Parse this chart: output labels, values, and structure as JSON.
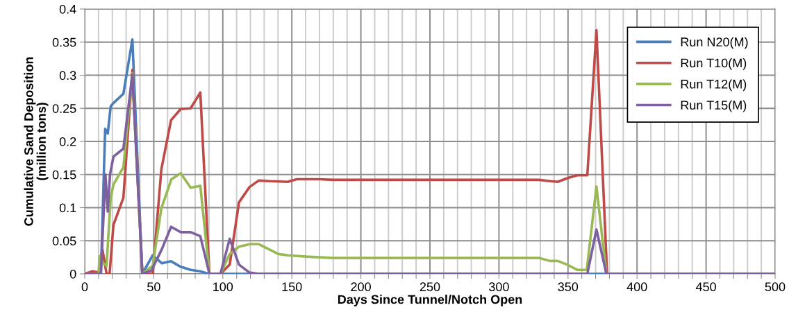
{
  "chart_data": {
    "type": "line",
    "xlabel": "Days Since Tunnel/Notch Open",
    "ylabel": "Cumulative Sand Deposition\n(million tons)",
    "xlim": [
      0,
      500
    ],
    "ylim": [
      0,
      0.4
    ],
    "xticks": [
      0,
      {
        "value": 10,
        "label": null
      },
      {
        "value": 20,
        "label": null
      },
      {
        "value": 30,
        "label": null
      },
      {
        "value": 40,
        "label": null
      },
      50,
      {
        "value": 60,
        "label": null
      },
      {
        "value": 70,
        "label": null
      },
      {
        "value": 80,
        "label": null
      },
      {
        "value": 90,
        "label": null
      },
      100,
      {
        "value": 110,
        "label": null
      },
      {
        "value": 120,
        "label": null
      },
      {
        "value": 130,
        "label": null
      },
      {
        "value": 140,
        "label": null
      },
      150,
      {
        "value": 160,
        "label": null
      },
      {
        "value": 170,
        "label": null
      },
      {
        "value": 180,
        "label": null
      },
      {
        "value": 190,
        "label": null
      },
      200,
      {
        "value": 210,
        "label": null
      },
      {
        "value": 220,
        "label": null
      },
      {
        "value": 230,
        "label": null
      },
      {
        "value": 240,
        "label": null
      },
      250,
      {
        "value": 260,
        "label": null
      },
      {
        "value": 270,
        "label": null
      },
      {
        "value": 280,
        "label": null
      },
      {
        "value": 290,
        "label": null
      },
      300,
      {
        "value": 310,
        "label": null
      },
      {
        "value": 320,
        "label": null
      },
      {
        "value": 330,
        "label": null
      },
      {
        "value": 340,
        "label": null
      },
      350,
      {
        "value": 360,
        "label": null
      },
      {
        "value": 370,
        "label": null
      },
      {
        "value": 380,
        "label": null
      },
      {
        "value": 390,
        "label": null
      },
      400,
      {
        "value": 410,
        "label": null
      },
      {
        "value": 420,
        "label": null
      },
      {
        "value": 430,
        "label": null
      },
      {
        "value": 440,
        "label": null
      },
      450,
      {
        "value": 460,
        "label": null
      },
      {
        "value": 470,
        "label": null
      },
      {
        "value": 480,
        "label": null
      },
      {
        "value": 490,
        "label": null
      },
      500
    ],
    "yticks": [
      0,
      0.05,
      0.1,
      0.15,
      0.2,
      0.25,
      0.3,
      0.35,
      0.4
    ],
    "grid": true,
    "legend": "top right",
    "marker": "none",
    "line_style": "solid",
    "series": [
      {
        "name": "Run N20(M)",
        "color": "#4a7ebb",
        "x": [
          0,
          11.7,
          14.8,
          16.7,
          18.8,
          20.8,
          28,
          34.5,
          41.7,
          49.2,
          55.8,
          62.5,
          69.2,
          76.7,
          83.3,
          90,
          500
        ],
        "values": [
          0,
          0,
          0.219,
          0.212,
          0.253,
          0.258,
          0.272,
          0.354,
          0,
          0.028,
          0.016,
          0.019,
          0.011,
          0.006,
          0.004,
          0,
          0
        ]
      },
      {
        "name": "Run T10(M)",
        "color": "#be4b48",
        "x": [
          0,
          5.8,
          10,
          12.8,
          15.8,
          18,
          20.8,
          28,
          34.5,
          41.7,
          49.2,
          55.5,
          62.5,
          69.5,
          76.7,
          83.7,
          90.3,
          98.3,
          105,
          111.7,
          119.3,
          126,
          133.5,
          147,
          153.6,
          170,
          180,
          197,
          329,
          336.8,
          342.6,
          350.2,
          356.9,
          364,
          370.6,
          378.3,
          500
        ],
        "values": [
          0,
          0.004,
          0.002,
          0.037,
          0,
          0,
          0.074,
          0.115,
          0.308,
          0,
          0,
          0.158,
          0.232,
          0.249,
          0.25,
          0.274,
          0,
          0,
          0.014,
          0.108,
          0.131,
          0.141,
          0.14,
          0.139,
          0.143,
          0.143,
          0.142,
          0.142,
          0.142,
          0.14,
          0.139,
          0.145,
          0.149,
          0.149,
          0.368,
          0,
          0
        ]
      },
      {
        "name": "Run T12(M)",
        "color": "#98b954",
        "x": [
          0,
          10,
          10.8,
          13.3,
          15.8,
          18.8,
          20.8,
          28,
          34.5,
          41.7,
          49.2,
          55.5,
          62.8,
          69.5,
          76.7,
          83.7,
          90.3,
          98.3,
          105,
          111.7,
          120,
          126,
          133.5,
          140.2,
          147,
          160.3,
          180,
          215.6,
          329,
          336.8,
          342.6,
          349.3,
          356.9,
          363.6,
          370.6,
          377.8,
          500
        ],
        "values": [
          0,
          0,
          0.027,
          0.016,
          0.012,
          0.115,
          0.135,
          0.161,
          0.303,
          0,
          0.012,
          0.099,
          0.143,
          0.152,
          0.13,
          0.133,
          0,
          0,
          0.03,
          0.041,
          0.045,
          0.045,
          0.037,
          0.03,
          0.028,
          0.026,
          0.024,
          0.024,
          0.024,
          0.0195,
          0.0195,
          0.014,
          0.006,
          0.006,
          0.132,
          0,
          0
        ]
      },
      {
        "name": "Run T15(M)",
        "color": "#7d60a0",
        "x": [
          0,
          11.7,
          15,
          16.7,
          18.3,
          20.8,
          28,
          34.5,
          41.7,
          48.3,
          55.8,
          62.5,
          69.5,
          76.7,
          83.7,
          90.3,
          98.3,
          105,
          111.7,
          119.3,
          126,
          364,
          370.6,
          377.8,
          500
        ],
        "values": [
          0,
          0,
          0.15,
          0.094,
          0.15,
          0.177,
          0.189,
          0.301,
          0,
          0.005,
          0.037,
          0.071,
          0.063,
          0.063,
          0.057,
          0,
          0,
          0.053,
          0.014,
          0.002,
          0,
          0,
          0.067,
          0,
          0
        ]
      }
    ]
  }
}
